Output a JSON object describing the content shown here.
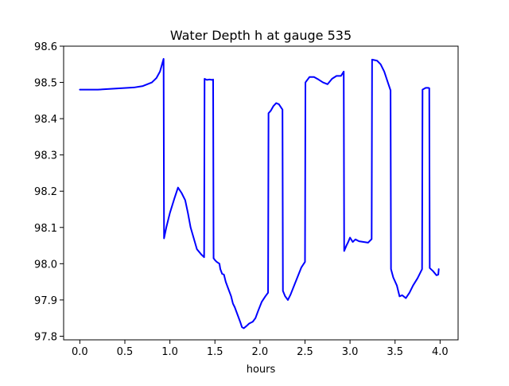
{
  "chart_data": {
    "type": "line",
    "title": "Water Depth h at gauge 535",
    "xlabel": "hours",
    "ylabel": "",
    "xlim": [
      -0.18,
      4.2
    ],
    "ylim": [
      97.79,
      98.6
    ],
    "xticks": [
      0.0,
      0.5,
      1.0,
      1.5,
      2.0,
      2.5,
      3.0,
      3.5,
      4.0
    ],
    "xtick_labels": [
      "0.0",
      "0.5",
      "1.0",
      "1.5",
      "2.0",
      "2.5",
      "3.0",
      "3.5",
      "4.0"
    ],
    "yticks": [
      97.8,
      97.9,
      98.0,
      98.1,
      98.2,
      98.3,
      98.4,
      98.5,
      98.6
    ],
    "ytick_labels": [
      "97.8",
      "97.9",
      "98.0",
      "98.1",
      "98.2",
      "98.3",
      "98.4",
      "98.5",
      "98.6"
    ],
    "grid": false,
    "series": [
      {
        "color": "#0000ff",
        "points": [
          [
            0.0,
            98.48
          ],
          [
            0.2,
            98.48
          ],
          [
            0.4,
            98.483
          ],
          [
            0.6,
            98.486
          ],
          [
            0.7,
            98.49
          ],
          [
            0.8,
            98.5
          ],
          [
            0.85,
            98.512
          ],
          [
            0.89,
            98.53
          ],
          [
            0.93,
            98.565
          ],
          [
            0.935,
            98.07
          ],
          [
            0.96,
            98.1
          ],
          [
            1.0,
            98.14
          ],
          [
            1.05,
            98.18
          ],
          [
            1.09,
            98.21
          ],
          [
            1.13,
            98.195
          ],
          [
            1.17,
            98.175
          ],
          [
            1.2,
            98.14
          ],
          [
            1.23,
            98.1
          ],
          [
            1.3,
            98.04
          ],
          [
            1.35,
            98.025
          ],
          [
            1.38,
            98.018
          ],
          [
            1.385,
            98.51
          ],
          [
            1.41,
            98.507
          ],
          [
            1.44,
            98.508
          ],
          [
            1.47,
            98.507
          ],
          [
            1.48,
            98.508
          ],
          [
            1.485,
            98.015
          ],
          [
            1.5,
            98.01
          ],
          [
            1.52,
            98.005
          ],
          [
            1.55,
            98.0
          ],
          [
            1.56,
            97.985
          ],
          [
            1.58,
            97.972
          ],
          [
            1.6,
            97.97
          ],
          [
            1.62,
            97.95
          ],
          [
            1.65,
            97.93
          ],
          [
            1.68,
            97.91
          ],
          [
            1.7,
            97.89
          ],
          [
            1.72,
            97.88
          ],
          [
            1.75,
            97.86
          ],
          [
            1.78,
            97.84
          ],
          [
            1.8,
            97.825
          ],
          [
            1.82,
            97.822
          ],
          [
            1.85,
            97.828
          ],
          [
            1.88,
            97.835
          ],
          [
            1.92,
            97.84
          ],
          [
            1.95,
            97.85
          ],
          [
            1.98,
            97.87
          ],
          [
            2.02,
            97.895
          ],
          [
            2.06,
            97.91
          ],
          [
            2.09,
            97.92
          ],
          [
            2.095,
            98.415
          ],
          [
            2.12,
            98.422
          ],
          [
            2.15,
            98.435
          ],
          [
            2.18,
            98.443
          ],
          [
            2.21,
            98.44
          ],
          [
            2.25,
            98.425
          ],
          [
            2.255,
            97.925
          ],
          [
            2.28,
            97.91
          ],
          [
            2.31,
            97.9
          ],
          [
            2.34,
            97.915
          ],
          [
            2.38,
            97.94
          ],
          [
            2.42,
            97.965
          ],
          [
            2.46,
            97.99
          ],
          [
            2.5,
            98.005
          ],
          [
            2.505,
            98.5
          ],
          [
            2.55,
            98.515
          ],
          [
            2.6,
            98.515
          ],
          [
            2.65,
            98.508
          ],
          [
            2.7,
            98.5
          ],
          [
            2.75,
            98.495
          ],
          [
            2.8,
            98.51
          ],
          [
            2.85,
            98.518
          ],
          [
            2.9,
            98.518
          ],
          [
            2.93,
            98.53
          ],
          [
            2.935,
            98.035
          ],
          [
            2.96,
            98.05
          ],
          [
            2.98,
            98.06
          ],
          [
            3.0,
            98.072
          ],
          [
            3.03,
            98.06
          ],
          [
            3.06,
            98.067
          ],
          [
            3.1,
            98.062
          ],
          [
            3.15,
            98.06
          ],
          [
            3.2,
            98.058
          ],
          [
            3.24,
            98.068
          ],
          [
            3.245,
            98.563
          ],
          [
            3.3,
            98.56
          ],
          [
            3.34,
            98.55
          ],
          [
            3.38,
            98.53
          ],
          [
            3.42,
            98.5
          ],
          [
            3.45,
            98.478
          ],
          [
            3.455,
            97.985
          ],
          [
            3.48,
            97.962
          ],
          [
            3.52,
            97.94
          ],
          [
            3.55,
            97.91
          ],
          [
            3.58,
            97.913
          ],
          [
            3.62,
            97.905
          ],
          [
            3.66,
            97.92
          ],
          [
            3.7,
            97.94
          ],
          [
            3.75,
            97.96
          ],
          [
            3.8,
            97.985
          ],
          [
            3.805,
            98.48
          ],
          [
            3.84,
            98.485
          ],
          [
            3.87,
            98.485
          ],
          [
            3.88,
            98.484
          ],
          [
            3.885,
            97.988
          ],
          [
            3.92,
            97.98
          ],
          [
            3.96,
            97.968
          ],
          [
            3.98,
            97.97
          ],
          [
            3.985,
            97.985
          ]
        ]
      }
    ]
  }
}
